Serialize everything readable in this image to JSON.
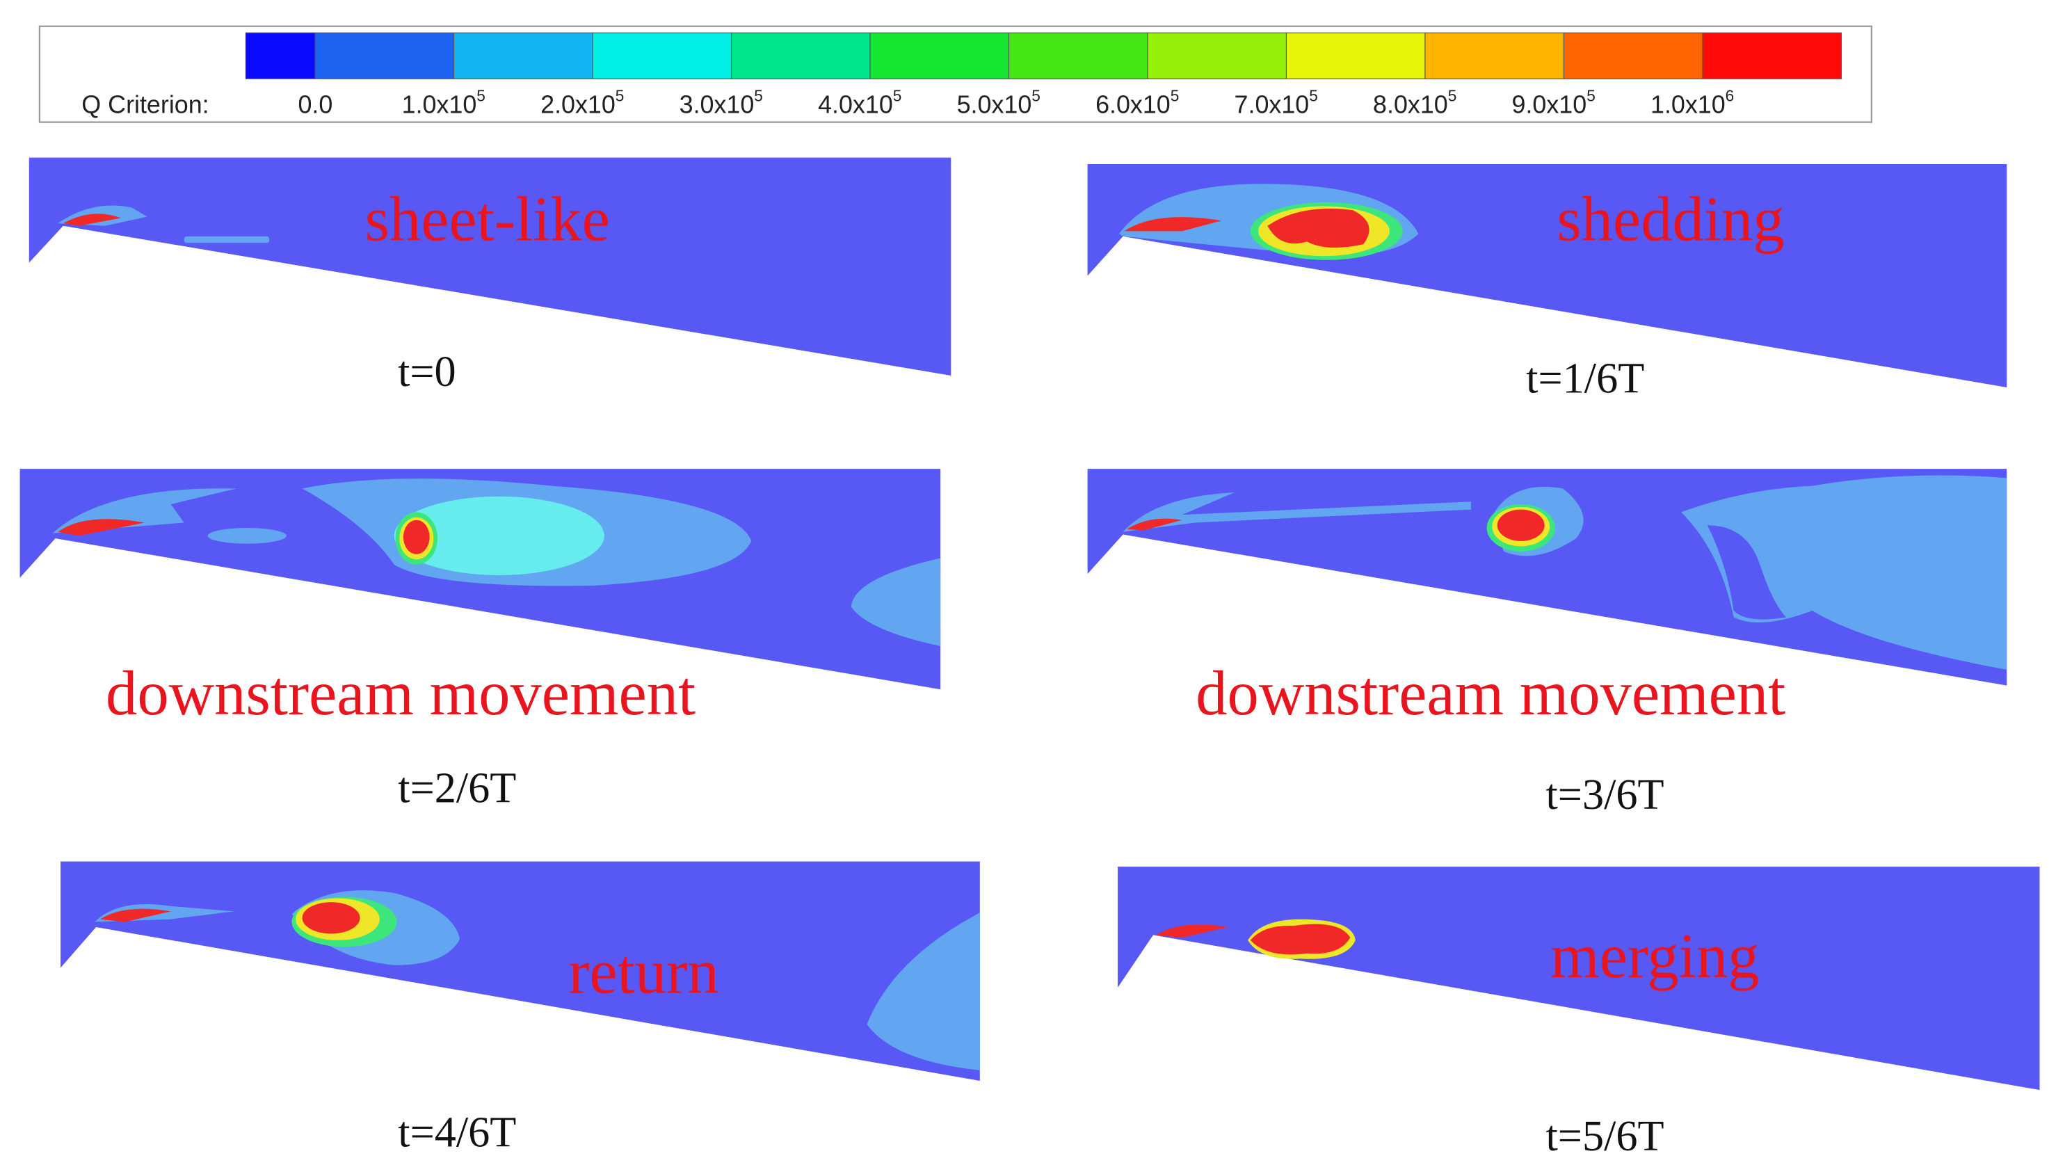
{
  "colorbar": {
    "label": "Q Criterion:",
    "ticks": [
      {
        "base": "0.0"
      },
      {
        "base": "1.0x10",
        "exp": "5"
      },
      {
        "base": "2.0x10",
        "exp": "5"
      },
      {
        "base": "3.0x10",
        "exp": "5"
      },
      {
        "base": "4.0x10",
        "exp": "5"
      },
      {
        "base": "5.0x10",
        "exp": "5"
      },
      {
        "base": "6.0x10",
        "exp": "5"
      },
      {
        "base": "7.0x10",
        "exp": "5"
      },
      {
        "base": "8.0x10",
        "exp": "5"
      },
      {
        "base": "9.0x10",
        "exp": "5"
      },
      {
        "base": "1.0x10",
        "exp": "6"
      }
    ],
    "colors": [
      "#0a0aff",
      "#1e64f0",
      "#14b4f0",
      "#00f0e6",
      "#00e68c",
      "#14e632",
      "#46e614",
      "#96f00a",
      "#e6f50a",
      "#ffb400",
      "#ff6400",
      "#ff0a0a"
    ]
  },
  "panels": [
    {
      "label": "sheet-like",
      "time": "t=0"
    },
    {
      "label": "shedding",
      "time": "t=1/6T"
    },
    {
      "label": "downstream movement",
      "time": "t=2/6T"
    },
    {
      "label": "downstream movement",
      "time": "t=3/6T"
    },
    {
      "label": "return",
      "time": "t=4/6T"
    },
    {
      "label": "merging",
      "time": "t=5/6T"
    }
  ]
}
